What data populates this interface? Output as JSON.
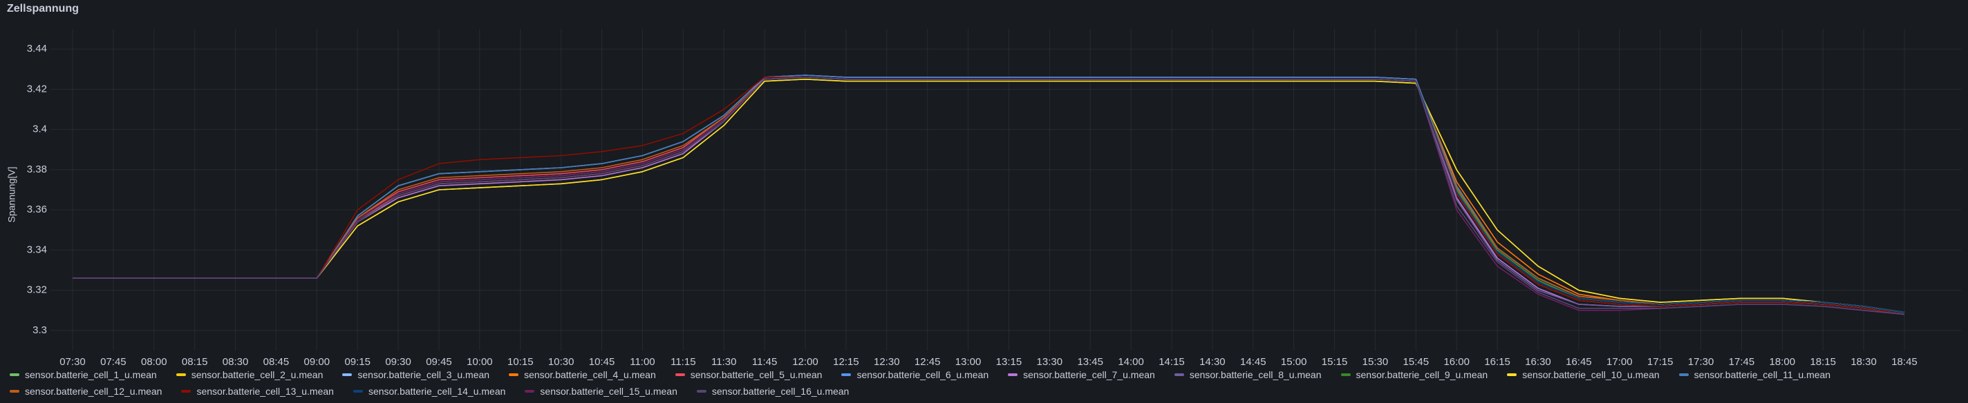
{
  "chart_data": {
    "type": "line",
    "title": "Zellspannung",
    "y_label": "Spannung[V]",
    "x": [
      "07:30",
      "07:45",
      "08:00",
      "08:15",
      "08:30",
      "08:45",
      "09:00",
      "09:15",
      "09:30",
      "09:45",
      "10:00",
      "10:15",
      "10:30",
      "10:45",
      "11:00",
      "11:15",
      "11:30",
      "11:45",
      "12:00",
      "12:15",
      "12:30",
      "12:45",
      "13:00",
      "13:15",
      "13:30",
      "13:45",
      "14:00",
      "14:15",
      "14:30",
      "14:45",
      "15:00",
      "15:15",
      "15:30",
      "15:45",
      "16:00",
      "16:15",
      "16:30",
      "16:45",
      "17:00",
      "17:15",
      "17:30",
      "17:45",
      "18:00",
      "18:15",
      "18:30",
      "18:45"
    ],
    "ylim": [
      3.29,
      3.45
    ],
    "yticks": [
      3.3,
      3.32,
      3.34,
      3.36,
      3.38,
      3.4,
      3.42,
      3.44
    ],
    "grid": true,
    "series": [
      {
        "name": "sensor.batterie_cell_1_u.mean",
        "color": "#73bf69",
        "values": [
          3.326,
          3.326,
          3.326,
          3.326,
          3.326,
          3.326,
          3.326,
          3.355,
          3.368,
          3.374,
          3.375,
          3.376,
          3.377,
          3.379,
          3.383,
          3.39,
          3.405,
          3.425,
          3.426,
          3.425,
          3.425,
          3.425,
          3.425,
          3.425,
          3.425,
          3.425,
          3.425,
          3.425,
          3.425,
          3.425,
          3.425,
          3.425,
          3.425,
          3.424,
          3.37,
          3.34,
          3.325,
          3.316,
          3.314,
          3.313,
          3.314,
          3.315,
          3.315,
          3.314,
          3.312,
          3.309
        ]
      },
      {
        "name": "sensor.batterie_cell_2_u.mean",
        "color": "#f2cc0c",
        "values": [
          3.326,
          3.326,
          3.326,
          3.326,
          3.326,
          3.326,
          3.326,
          3.352,
          3.364,
          3.37,
          3.371,
          3.372,
          3.373,
          3.375,
          3.379,
          3.386,
          3.402,
          3.424,
          3.425,
          3.424,
          3.424,
          3.424,
          3.424,
          3.424,
          3.424,
          3.424,
          3.424,
          3.424,
          3.424,
          3.424,
          3.424,
          3.424,
          3.424,
          3.423,
          3.38,
          3.35,
          3.332,
          3.32,
          3.316,
          3.314,
          3.315,
          3.316,
          3.316,
          3.314,
          3.312,
          3.309
        ]
      },
      {
        "name": "sensor.batterie_cell_3_u.mean",
        "color": "#8ab8ff",
        "values": [
          3.326,
          3.326,
          3.326,
          3.326,
          3.326,
          3.326,
          3.326,
          3.357,
          3.372,
          3.378,
          3.379,
          3.38,
          3.381,
          3.383,
          3.387,
          3.394,
          3.407,
          3.426,
          3.427,
          3.426,
          3.426,
          3.426,
          3.426,
          3.426,
          3.426,
          3.426,
          3.426,
          3.426,
          3.426,
          3.426,
          3.426,
          3.426,
          3.426,
          3.425,
          3.372,
          3.341,
          3.326,
          3.317,
          3.315,
          3.313,
          3.314,
          3.315,
          3.315,
          3.314,
          3.312,
          3.309
        ]
      },
      {
        "name": "sensor.batterie_cell_4_u.mean",
        "color": "#ff780a",
        "values": [
          3.326,
          3.326,
          3.326,
          3.326,
          3.326,
          3.326,
          3.326,
          3.355,
          3.367,
          3.373,
          3.374,
          3.375,
          3.376,
          3.378,
          3.382,
          3.389,
          3.404,
          3.425,
          3.426,
          3.425,
          3.425,
          3.425,
          3.425,
          3.425,
          3.425,
          3.425,
          3.425,
          3.425,
          3.425,
          3.425,
          3.425,
          3.425,
          3.425,
          3.424,
          3.374,
          3.344,
          3.328,
          3.318,
          3.315,
          3.313,
          3.314,
          3.315,
          3.315,
          3.314,
          3.312,
          3.309
        ]
      },
      {
        "name": "sensor.batterie_cell_5_u.mean",
        "color": "#f2495c",
        "values": [
          3.326,
          3.326,
          3.326,
          3.326,
          3.326,
          3.326,
          3.326,
          3.356,
          3.369,
          3.375,
          3.376,
          3.377,
          3.378,
          3.38,
          3.384,
          3.391,
          3.406,
          3.425,
          3.426,
          3.425,
          3.425,
          3.425,
          3.425,
          3.425,
          3.425,
          3.425,
          3.425,
          3.425,
          3.425,
          3.425,
          3.425,
          3.425,
          3.425,
          3.424,
          3.368,
          3.338,
          3.323,
          3.315,
          3.313,
          3.312,
          3.313,
          3.314,
          3.314,
          3.313,
          3.311,
          3.308
        ]
      },
      {
        "name": "sensor.batterie_cell_6_u.mean",
        "color": "#5794f2",
        "values": [
          3.326,
          3.326,
          3.326,
          3.326,
          3.326,
          3.326,
          3.326,
          3.355,
          3.368,
          3.374,
          3.375,
          3.376,
          3.377,
          3.379,
          3.383,
          3.39,
          3.405,
          3.425,
          3.426,
          3.425,
          3.425,
          3.425,
          3.425,
          3.425,
          3.425,
          3.425,
          3.425,
          3.425,
          3.425,
          3.425,
          3.425,
          3.425,
          3.425,
          3.424,
          3.37,
          3.34,
          3.325,
          3.316,
          3.314,
          3.313,
          3.314,
          3.315,
          3.315,
          3.314,
          3.312,
          3.309
        ]
      },
      {
        "name": "sensor.batterie_cell_7_u.mean",
        "color": "#b877d9",
        "values": [
          3.326,
          3.326,
          3.326,
          3.326,
          3.326,
          3.326,
          3.326,
          3.354,
          3.366,
          3.372,
          3.373,
          3.374,
          3.375,
          3.377,
          3.381,
          3.388,
          3.404,
          3.426,
          3.427,
          3.426,
          3.426,
          3.426,
          3.426,
          3.426,
          3.426,
          3.426,
          3.426,
          3.426,
          3.426,
          3.426,
          3.426,
          3.426,
          3.426,
          3.425,
          3.366,
          3.336,
          3.321,
          3.313,
          3.312,
          3.312,
          3.313,
          3.314,
          3.314,
          3.313,
          3.311,
          3.308
        ]
      },
      {
        "name": "sensor.batterie_cell_8_u.mean",
        "color": "#705da0",
        "values": [
          3.326,
          3.326,
          3.326,
          3.326,
          3.326,
          3.326,
          3.326,
          3.355,
          3.368,
          3.374,
          3.375,
          3.376,
          3.377,
          3.379,
          3.383,
          3.39,
          3.405,
          3.425,
          3.426,
          3.425,
          3.425,
          3.425,
          3.425,
          3.425,
          3.425,
          3.425,
          3.425,
          3.425,
          3.425,
          3.425,
          3.425,
          3.425,
          3.425,
          3.424,
          3.365,
          3.335,
          3.32,
          3.313,
          3.312,
          3.312,
          3.313,
          3.314,
          3.314,
          3.313,
          3.311,
          3.308
        ]
      },
      {
        "name": "sensor.batterie_cell_9_u.mean",
        "color": "#37872d",
        "values": [
          3.326,
          3.326,
          3.326,
          3.326,
          3.326,
          3.326,
          3.326,
          3.355,
          3.368,
          3.374,
          3.375,
          3.376,
          3.377,
          3.379,
          3.383,
          3.39,
          3.405,
          3.425,
          3.426,
          3.425,
          3.425,
          3.425,
          3.425,
          3.425,
          3.425,
          3.425,
          3.425,
          3.425,
          3.425,
          3.425,
          3.425,
          3.425,
          3.425,
          3.424,
          3.37,
          3.34,
          3.325,
          3.316,
          3.314,
          3.313,
          3.314,
          3.315,
          3.315,
          3.314,
          3.312,
          3.309
        ]
      },
      {
        "name": "sensor.batterie_cell_10_u.mean",
        "color": "#fade2a",
        "values": [
          3.326,
          3.326,
          3.326,
          3.326,
          3.326,
          3.326,
          3.326,
          3.352,
          3.364,
          3.37,
          3.371,
          3.372,
          3.373,
          3.375,
          3.379,
          3.386,
          3.402,
          3.424,
          3.425,
          3.424,
          3.424,
          3.424,
          3.424,
          3.424,
          3.424,
          3.424,
          3.424,
          3.424,
          3.424,
          3.424,
          3.424,
          3.424,
          3.424,
          3.423,
          3.38,
          3.35,
          3.332,
          3.32,
          3.316,
          3.314,
          3.315,
          3.316,
          3.316,
          3.314,
          3.312,
          3.309
        ]
      },
      {
        "name": "sensor.batterie_cell_11_u.mean",
        "color": "#447ebc",
        "values": [
          3.326,
          3.326,
          3.326,
          3.326,
          3.326,
          3.326,
          3.326,
          3.357,
          3.372,
          3.378,
          3.379,
          3.38,
          3.381,
          3.383,
          3.387,
          3.394,
          3.407,
          3.426,
          3.427,
          3.426,
          3.426,
          3.426,
          3.426,
          3.426,
          3.426,
          3.426,
          3.426,
          3.426,
          3.426,
          3.426,
          3.426,
          3.426,
          3.426,
          3.425,
          3.372,
          3.341,
          3.326,
          3.317,
          3.315,
          3.313,
          3.314,
          3.315,
          3.315,
          3.314,
          3.312,
          3.309
        ]
      },
      {
        "name": "sensor.batterie_cell_12_u.mean",
        "color": "#c15c17",
        "values": [
          3.326,
          3.326,
          3.326,
          3.326,
          3.326,
          3.326,
          3.326,
          3.356,
          3.37,
          3.376,
          3.377,
          3.378,
          3.379,
          3.381,
          3.385,
          3.392,
          3.406,
          3.425,
          3.426,
          3.425,
          3.425,
          3.425,
          3.425,
          3.425,
          3.425,
          3.425,
          3.425,
          3.425,
          3.425,
          3.425,
          3.425,
          3.425,
          3.425,
          3.424,
          3.371,
          3.341,
          3.326,
          3.317,
          3.315,
          3.313,
          3.314,
          3.315,
          3.315,
          3.314,
          3.312,
          3.309
        ]
      },
      {
        "name": "sensor.batterie_cell_13_u.mean",
        "color": "#890f02",
        "values": [
          3.326,
          3.326,
          3.326,
          3.326,
          3.326,
          3.326,
          3.326,
          3.36,
          3.375,
          3.383,
          3.385,
          3.386,
          3.387,
          3.389,
          3.392,
          3.398,
          3.41,
          3.426,
          3.426,
          3.425,
          3.425,
          3.425,
          3.425,
          3.425,
          3.425,
          3.425,
          3.425,
          3.425,
          3.425,
          3.425,
          3.425,
          3.425,
          3.425,
          3.424,
          3.368,
          3.338,
          3.323,
          3.315,
          3.313,
          3.312,
          3.313,
          3.314,
          3.314,
          3.313,
          3.311,
          3.308
        ]
      },
      {
        "name": "sensor.batterie_cell_14_u.mean",
        "color": "#0a437c",
        "values": [
          3.326,
          3.326,
          3.326,
          3.326,
          3.326,
          3.326,
          3.326,
          3.355,
          3.368,
          3.374,
          3.375,
          3.376,
          3.377,
          3.379,
          3.383,
          3.39,
          3.405,
          3.425,
          3.426,
          3.425,
          3.425,
          3.425,
          3.425,
          3.425,
          3.425,
          3.425,
          3.425,
          3.425,
          3.425,
          3.425,
          3.425,
          3.425,
          3.425,
          3.424,
          3.369,
          3.339,
          3.324,
          3.316,
          3.314,
          3.313,
          3.314,
          3.315,
          3.315,
          3.314,
          3.312,
          3.309
        ]
      },
      {
        "name": "sensor.batterie_cell_15_u.mean",
        "color": "#6d1f62",
        "values": [
          3.326,
          3.326,
          3.326,
          3.326,
          3.326,
          3.326,
          3.326,
          3.355,
          3.368,
          3.374,
          3.375,
          3.376,
          3.377,
          3.379,
          3.383,
          3.39,
          3.405,
          3.425,
          3.426,
          3.425,
          3.425,
          3.425,
          3.425,
          3.425,
          3.425,
          3.425,
          3.425,
          3.425,
          3.425,
          3.425,
          3.425,
          3.425,
          3.425,
          3.424,
          3.36,
          3.332,
          3.318,
          3.31,
          3.31,
          3.311,
          3.312,
          3.313,
          3.313,
          3.312,
          3.31,
          3.308
        ]
      },
      {
        "name": "sensor.batterie_cell_16_u.mean",
        "color": "#584477",
        "values": [
          3.326,
          3.326,
          3.326,
          3.326,
          3.326,
          3.326,
          3.326,
          3.354,
          3.367,
          3.373,
          3.374,
          3.375,
          3.376,
          3.378,
          3.382,
          3.389,
          3.404,
          3.425,
          3.426,
          3.425,
          3.425,
          3.425,
          3.425,
          3.425,
          3.425,
          3.425,
          3.425,
          3.425,
          3.425,
          3.425,
          3.425,
          3.425,
          3.425,
          3.424,
          3.362,
          3.334,
          3.319,
          3.311,
          3.311,
          3.311,
          3.312,
          3.313,
          3.313,
          3.312,
          3.31,
          3.308
        ]
      }
    ]
  }
}
